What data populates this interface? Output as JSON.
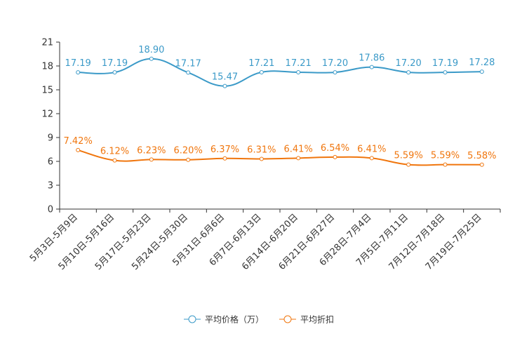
{
  "chart_data": {
    "type": "line",
    "categories": [
      "5月3日-5月9日",
      "5月10日-5月16日",
      "5月17日-5月23日",
      "5月24日-5月30日",
      "5月31日-6月6日",
      "6月7日-6月13日",
      "6月14日-6月20日",
      "6月21日-6月27日",
      "6月28日-7月4日",
      "7月5日-7月11日",
      "7月12日-7月18日",
      "7月19日-7月25日"
    ],
    "ylim": [
      0,
      21
    ],
    "yticks": [
      0,
      3,
      6,
      9,
      12,
      15,
      18,
      21
    ],
    "series": [
      {
        "name": "平均价格（万）",
        "color": "#3b9ac8",
        "values": [
          17.19,
          17.19,
          18.9,
          17.17,
          15.47,
          17.21,
          17.21,
          17.2,
          17.86,
          17.2,
          17.19,
          17.28
        ],
        "labels": [
          "17.19",
          "17.19",
          "18.90",
          "17.17",
          "15.47",
          "17.21",
          "17.21",
          "17.20",
          "17.86",
          "17.20",
          "17.19",
          "17.28"
        ]
      },
      {
        "name": "平均折扣",
        "color": "#f0760e",
        "values": [
          7.42,
          6.12,
          6.23,
          6.2,
          6.37,
          6.31,
          6.41,
          6.54,
          6.41,
          5.59,
          5.59,
          5.58
        ],
        "labels": [
          "7.42%",
          "6.12%",
          "6.23%",
          "6.20%",
          "6.37%",
          "6.31%",
          "6.41%",
          "6.54%",
          "6.41%",
          "5.59%",
          "5.59%",
          "5.58%"
        ]
      }
    ],
    "legend_position": "bottom-center"
  }
}
